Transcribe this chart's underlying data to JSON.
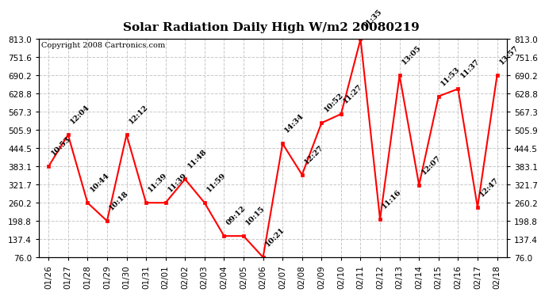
{
  "title": "Solar Radiation Daily High W/m2 20080219",
  "copyright": "Copyright 2008 Cartronics.com",
  "dates": [
    "01/26",
    "01/27",
    "01/28",
    "01/29",
    "01/30",
    "01/31",
    "02/01",
    "02/02",
    "02/03",
    "02/04",
    "02/05",
    "02/06",
    "02/07",
    "02/08",
    "02/09",
    "02/10",
    "02/11",
    "02/12",
    "02/13",
    "02/14",
    "02/15",
    "02/16",
    "02/17",
    "02/18"
  ],
  "values": [
    383.1,
    490.0,
    260.2,
    198.8,
    490.0,
    260.2,
    260.2,
    340.0,
    260.2,
    148.0,
    148.0,
    76.0,
    460.0,
    355.0,
    530.0,
    560.0,
    813.0,
    205.0,
    690.2,
    320.0,
    620.0,
    645.0,
    245.0,
    690.2
  ],
  "time_labels": [
    "10:53",
    "12:04",
    "10:44",
    "10:18",
    "12:12",
    "11:39",
    "11:39",
    "11:48",
    "11:59",
    "09:12",
    "10:15",
    "10:21",
    "14:34",
    "12:27",
    "10:52",
    "11:27",
    "11:35",
    "11:16",
    "13:05",
    "12:07",
    "11:53",
    "11:37",
    "12:47",
    "13:57"
  ],
  "ylim_min": 76.0,
  "ylim_max": 813.0,
  "yticks": [
    76.0,
    137.4,
    198.8,
    260.2,
    321.7,
    383.1,
    444.5,
    505.9,
    567.3,
    628.8,
    690.2,
    751.6,
    813.0
  ],
  "line_color": "#ff0000",
  "marker_color": "#ff0000",
  "bg_color": "#ffffff",
  "grid_color": "#c8c8c8",
  "title_fontsize": 11,
  "copyright_fontsize": 7,
  "annotation_fontsize": 7,
  "tick_fontsize": 7.5
}
